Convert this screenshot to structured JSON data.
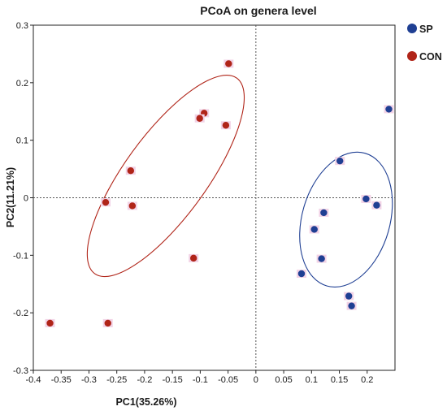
{
  "chart_data": {
    "type": "scatter",
    "title": "PCoA on genera level",
    "xlabel": "PC1(35.26%)",
    "ylabel": "PC2(11.21%)",
    "xlim": [
      -0.4,
      0.25
    ],
    "ylim": [
      -0.3,
      0.3
    ],
    "x_ticks": [
      -0.4,
      -0.35,
      -0.3,
      -0.25,
      -0.2,
      -0.15,
      -0.1,
      -0.05,
      0,
      0.05,
      0.1,
      0.15,
      0.2
    ],
    "x_tick_labels": [
      "-0.4",
      "-0.35",
      "-0.3",
      "-0.25",
      "-0.2",
      "-0.15",
      "-0.1",
      "-0.05",
      "0",
      "0.05",
      "0.1",
      "0.15",
      "0.2"
    ],
    "y_ticks": [
      -0.3,
      -0.2,
      -0.1,
      0,
      0.1,
      0.2,
      0.3
    ],
    "y_tick_labels": [
      "-0.3",
      "-0.2",
      "-0.1",
      "0",
      "0.1",
      "0.2",
      "0.3"
    ],
    "reference_lines": {
      "x": 0,
      "y": 0,
      "style": "dotted"
    },
    "legend_position": "right-top",
    "series": [
      {
        "name": "SP",
        "color": "#1f3f93",
        "ellipse": {
          "center": [
            0.162,
            -0.038
          ],
          "radius": [
            0.079,
            0.12
          ],
          "rotation_deg": 16
        },
        "points": [
          [
            0.239,
            0.154
          ],
          [
            0.151,
            0.064
          ],
          [
            0.198,
            -0.002
          ],
          [
            0.217,
            -0.013
          ],
          [
            0.122,
            -0.026
          ],
          [
            0.105,
            -0.055
          ],
          [
            0.118,
            -0.106
          ],
          [
            0.082,
            -0.132
          ],
          [
            0.167,
            -0.171
          ],
          [
            0.172,
            -0.188
          ]
        ]
      },
      {
        "name": "CON",
        "color": "#b02418",
        "ellipse": {
          "center": [
            -0.162,
            0.038
          ],
          "radius": [
            0.074,
            0.21
          ],
          "rotation_deg": 36
        },
        "points": [
          [
            -0.049,
            0.233
          ],
          [
            -0.093,
            0.147
          ],
          [
            -0.101,
            0.138
          ],
          [
            -0.054,
            0.126
          ],
          [
            -0.225,
            0.047
          ],
          [
            -0.27,
            -0.008
          ],
          [
            -0.222,
            -0.014
          ],
          [
            -0.112,
            -0.105
          ],
          [
            -0.37,
            -0.218
          ],
          [
            -0.266,
            -0.218
          ]
        ]
      }
    ]
  }
}
